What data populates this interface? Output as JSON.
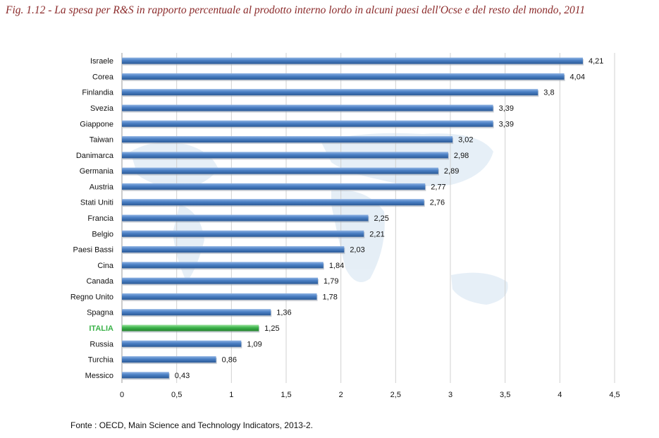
{
  "title": "Fig. 1.12 - La spesa per R&S in rapporto percentuale al prodotto interno lordo in alcuni paesi dell'Ocse e del resto del mondo, 2011",
  "source": "Fonte : OECD, Main Science and Technology Indicators, 2013-2.",
  "colors": {
    "bar": "#4a7fc4",
    "highlight": "#3cb34a",
    "title": "#8b2a2a"
  },
  "chart_data": {
    "type": "bar",
    "orientation": "horizontal",
    "categories": [
      "Israele",
      "Corea",
      "Finlandia",
      "Svezia",
      "Giappone",
      "Taiwan",
      "Danimarca",
      "Germania",
      "Austria",
      "Stati Uniti",
      "Francia",
      "Belgio",
      "Paesi Bassi",
      "Cina",
      "Canada",
      "Regno Unito",
      "Spagna",
      "ITALIA",
      "Russia",
      "Turchia",
      "Messico"
    ],
    "values": [
      4.21,
      4.04,
      3.8,
      3.39,
      3.39,
      3.02,
      2.98,
      2.89,
      2.77,
      2.76,
      2.25,
      2.21,
      2.03,
      1.84,
      1.79,
      1.78,
      1.36,
      1.25,
      1.09,
      0.86,
      0.43
    ],
    "value_labels": [
      "4,21",
      "4,04",
      "3,8",
      "3,39",
      "3,39",
      "3,02",
      "2,98",
      "2,89",
      "2,77",
      "2,76",
      "2,25",
      "2,21",
      "2,03",
      "1,84",
      "1,79",
      "1,78",
      "1,36",
      "1,25",
      "1,09",
      "0,86",
      "0,43"
    ],
    "highlight_category": "ITALIA",
    "xlim": [
      0,
      4.5
    ],
    "xticks": [
      0,
      0.5,
      1,
      1.5,
      2,
      2.5,
      3,
      3.5,
      4,
      4.5
    ],
    "xtick_labels": [
      "0",
      "0,5",
      "1",
      "1,5",
      "2",
      "2,5",
      "3",
      "3,5",
      "4",
      "4,5"
    ],
    "grid": true,
    "legend": "none"
  }
}
